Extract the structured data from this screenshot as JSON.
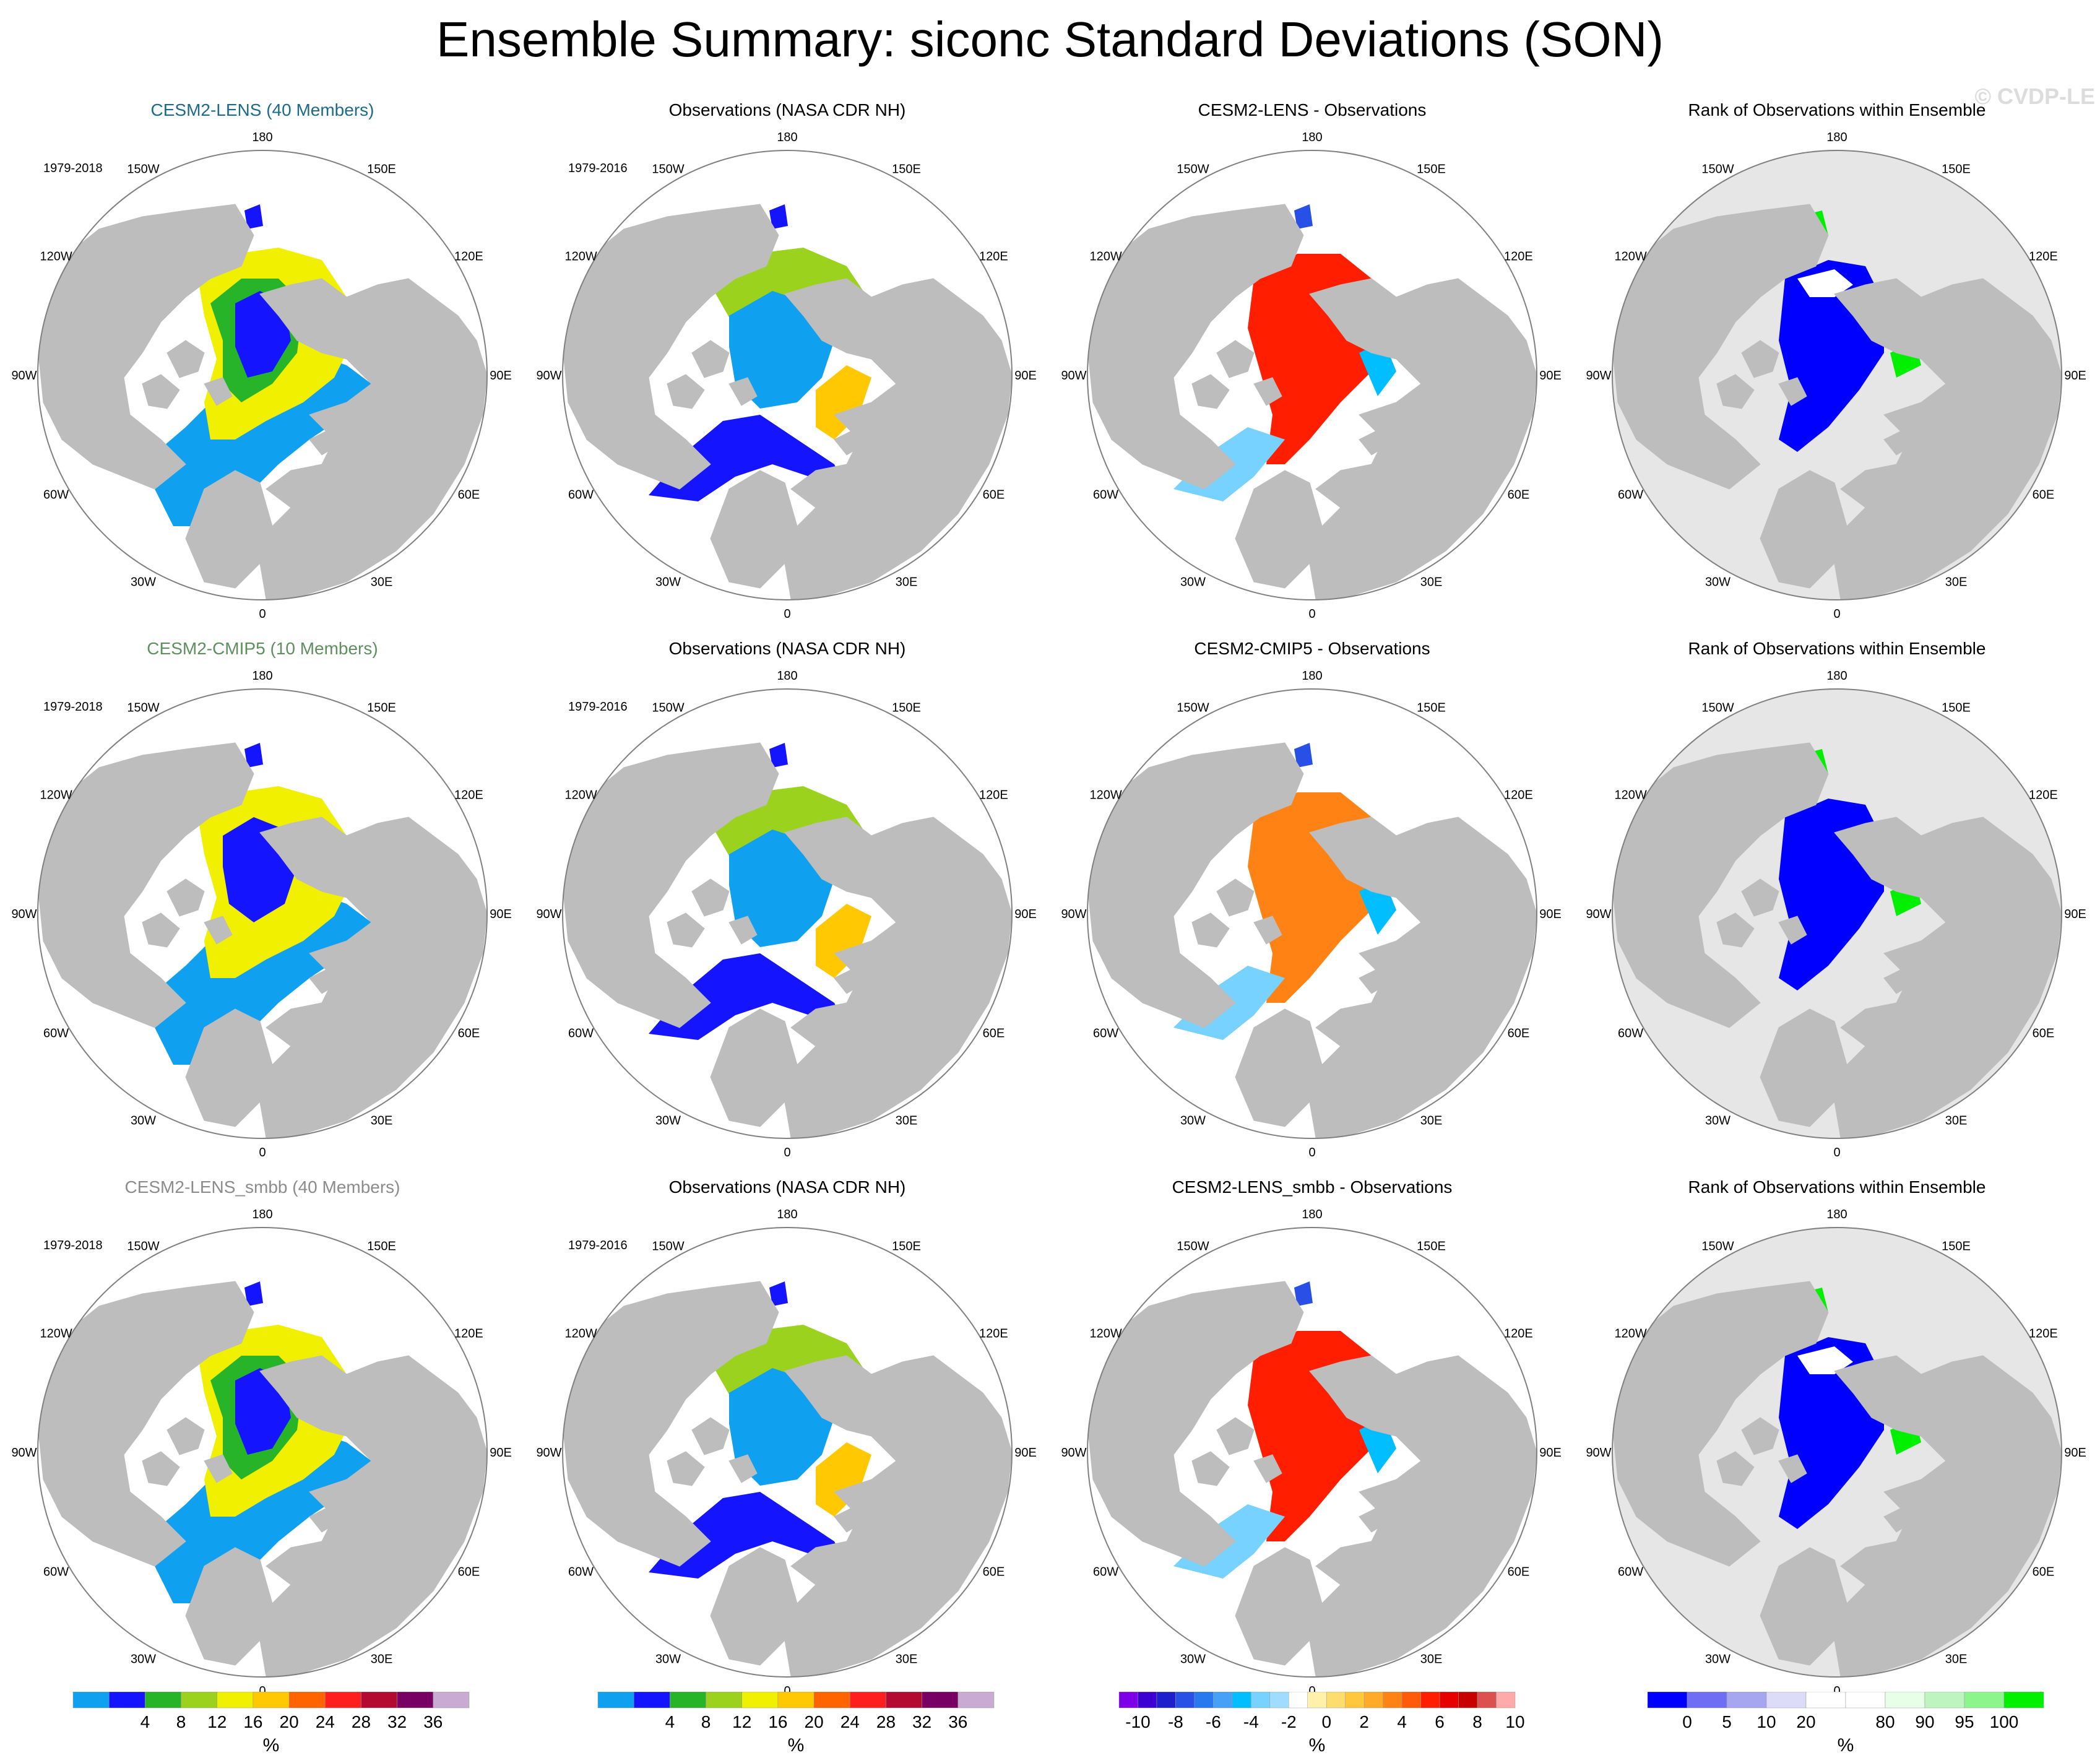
{
  "title": "Ensemble Summary: siconc Standard Deviations (SON)",
  "watermark": "© CVDP-LE",
  "colors": {
    "land": "#bdbdbd",
    "ocean": "#ffffff",
    "circle": "#808080",
    "rank_background": "#e6e6e6",
    "title_lens": "#1c6b8c",
    "title_cmip5": "#5f8f5f",
    "title_smbb": "#8c8c8c"
  },
  "lon_labels": [
    "180",
    "150E",
    "120E",
    "90E",
    "60E",
    "30E",
    "0",
    "30W",
    "60W",
    "90W",
    "120W",
    "150W"
  ],
  "rows": [
    {
      "panels": [
        {
          "title": "CESM2-LENS (40 Members)",
          "title_color": "#1c6b8c",
          "period": "1979-2018",
          "kind": "std_model"
        },
        {
          "title": "Observations (NASA CDR NH)",
          "title_color": "#000000",
          "period": "1979-2016",
          "kind": "std_obs"
        },
        {
          "title": "CESM2-LENS - Observations",
          "title_color": "#000000",
          "period": "",
          "kind": "diff"
        },
        {
          "title": "Rank of Observations within Ensemble",
          "title_color": "#000000",
          "period": "",
          "kind": "rank"
        }
      ]
    },
    {
      "panels": [
        {
          "title": "CESM2-CMIP5 (10 Members)",
          "title_color": "#5f8f5f",
          "period": "1979-2018",
          "kind": "std_model2"
        },
        {
          "title": "Observations (NASA CDR NH)",
          "title_color": "#000000",
          "period": "1979-2016",
          "kind": "std_obs"
        },
        {
          "title": "CESM2-CMIP5 - Observations",
          "title_color": "#000000",
          "period": "",
          "kind": "diff2"
        },
        {
          "title": "Rank of Observations within Ensemble",
          "title_color": "#000000",
          "period": "",
          "kind": "rank2"
        }
      ]
    },
    {
      "panels": [
        {
          "title": "CESM2-LENS_smbb (40 Members)",
          "title_color": "#8c8c8c",
          "period": "1979-2018",
          "kind": "std_model"
        },
        {
          "title": "Observations (NASA CDR NH)",
          "title_color": "#000000",
          "period": "1979-2016",
          "kind": "std_obs"
        },
        {
          "title": "CESM2-LENS_smbb - Observations",
          "title_color": "#000000",
          "period": "",
          "kind": "diff"
        },
        {
          "title": "Rank of Observations within Ensemble",
          "title_color": "#000000",
          "period": "",
          "kind": "rank"
        }
      ]
    }
  ],
  "colorbars": [
    {
      "name": "std",
      "colors": [
        "#0fa0f0",
        "#1414ff",
        "#28b428",
        "#9bd21e",
        "#f0f000",
        "#ffc800",
        "#ff6400",
        "#ff1e1e",
        "#b40a32",
        "#780064",
        "#c8aad2"
      ],
      "labels": [
        "4",
        "8",
        "12",
        "16",
        "20",
        "24",
        "28",
        "32",
        "36"
      ],
      "unit": "%"
    },
    {
      "name": "std_obs",
      "colors": [
        "#0fa0f0",
        "#1414ff",
        "#28b428",
        "#9bd21e",
        "#f0f000",
        "#ffc800",
        "#ff6400",
        "#ff1e1e",
        "#b40a32",
        "#780064",
        "#c8aad2"
      ],
      "labels": [
        "4",
        "8",
        "12",
        "16",
        "20",
        "24",
        "28",
        "32",
        "36"
      ],
      "unit": "%"
    },
    {
      "name": "diff",
      "colors": [
        "#7d00e6",
        "#3c00d2",
        "#1e1ecd",
        "#2850e6",
        "#2878f0",
        "#46a0f5",
        "#00beff",
        "#78d2ff",
        "#a0dcff",
        "#ffffff",
        "#fff0aa",
        "#ffdc6e",
        "#ffc83c",
        "#ffaa28",
        "#ff8214",
        "#ff5a0a",
        "#ff1e00",
        "#e60000",
        "#c80000",
        "#dc5050",
        "#ffaaaa"
      ],
      "labels": [
        "-10",
        "-8",
        "-6",
        "-4",
        "-2",
        "0",
        "2",
        "4",
        "6",
        "8",
        "10"
      ],
      "unit": "%"
    },
    {
      "name": "rank",
      "colors": [
        "#0000ff",
        "#6e6ef5",
        "#a5a5f0",
        "#dcdcf8",
        "#ffffff",
        "#ffffff",
        "#e6ffe6",
        "#bef5be",
        "#8cf58c",
        "#00f000"
      ],
      "labels": [
        "0",
        "5",
        "10",
        "20",
        "80",
        "90",
        "95",
        "100"
      ],
      "unit": "%"
    }
  ]
}
